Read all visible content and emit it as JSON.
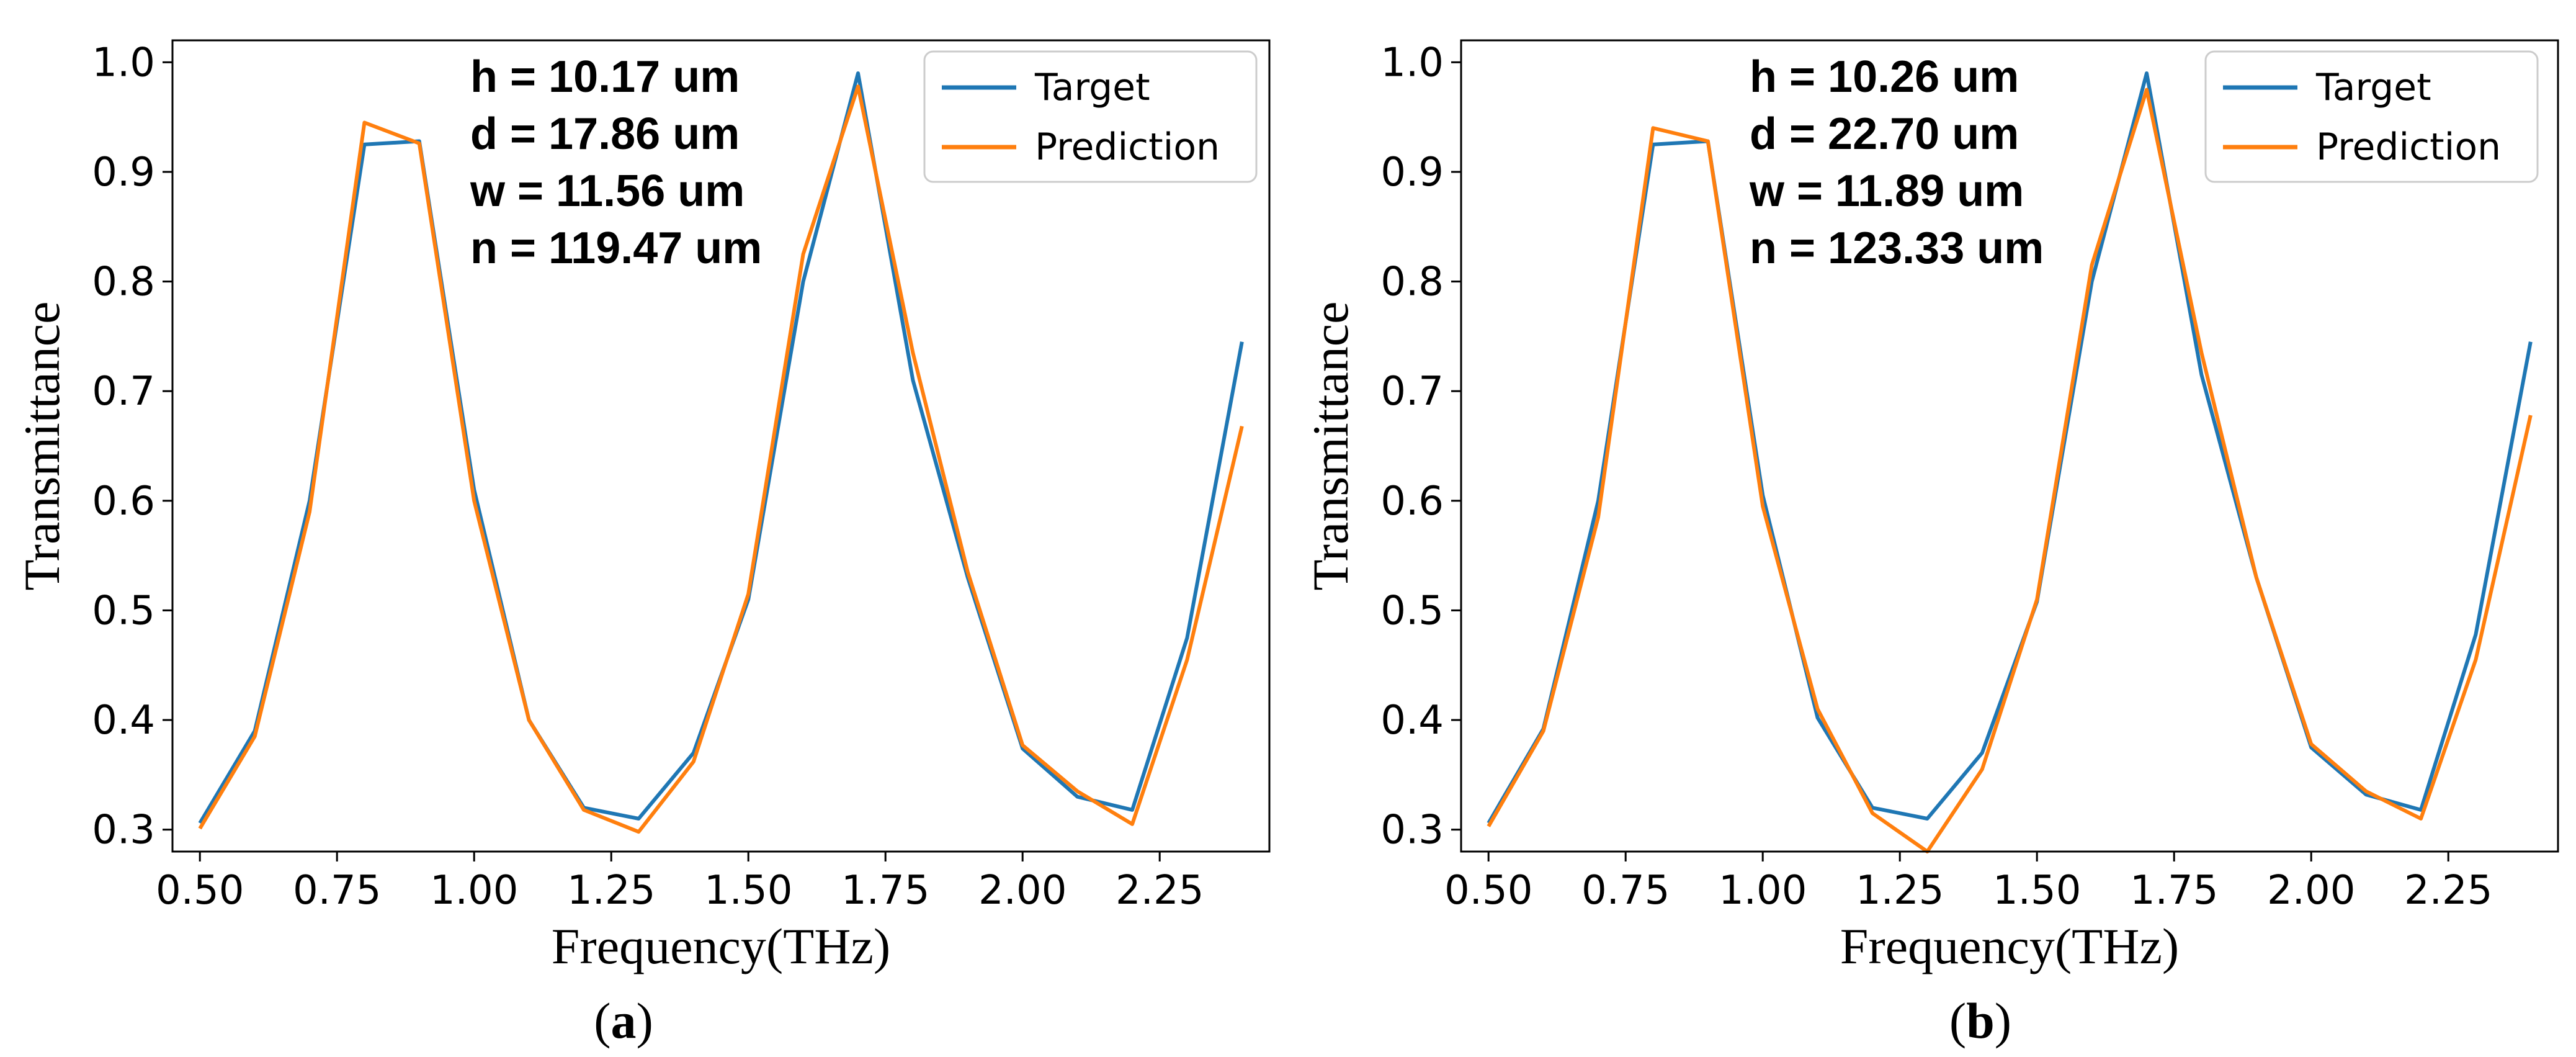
{
  "chart_data": [
    {
      "type": "line",
      "panel_label": "a",
      "xlabel": "Frequency(THz)",
      "ylabel": "Transmittance",
      "xlim": [
        0.45,
        2.45
      ],
      "ylim": [
        0.28,
        1.02
      ],
      "xticks": [
        "0.50",
        "0.75",
        "1.00",
        "1.25",
        "1.50",
        "1.75",
        "2.00",
        "2.25"
      ],
      "yticks": [
        "0.3",
        "0.4",
        "0.5",
        "0.6",
        "0.7",
        "0.8",
        "0.9",
        "1.0"
      ],
      "x": [
        0.5,
        0.6,
        0.7,
        0.8,
        0.9,
        1.0,
        1.1,
        1.2,
        1.3,
        1.4,
        1.5,
        1.6,
        1.7,
        1.8,
        1.9,
        2.0,
        2.1,
        2.2,
        2.3,
        2.4
      ],
      "series": [
        {
          "name": "Target",
          "color": "#1f77b4",
          "values": [
            0.306,
            0.39,
            0.6,
            0.925,
            0.928,
            0.61,
            0.4,
            0.32,
            0.31,
            0.37,
            0.51,
            0.8,
            0.99,
            0.71,
            0.53,
            0.374,
            0.33,
            0.318,
            0.475,
            0.745
          ]
        },
        {
          "name": "Prediction",
          "color": "#ff7f0e",
          "values": [
            0.301,
            0.385,
            0.59,
            0.945,
            0.926,
            0.6,
            0.4,
            0.318,
            0.298,
            0.362,
            0.515,
            0.825,
            0.978,
            0.735,
            0.535,
            0.377,
            0.335,
            0.305,
            0.455,
            0.668
          ]
        }
      ],
      "annotations": [
        "h = 10.17 um",
        "d = 17.86 um",
        "w = 11.56 um",
        "n = 119.47 um"
      ],
      "legend_position": "upper-right"
    },
    {
      "type": "line",
      "panel_label": "b",
      "xlabel": "Frequency(THz)",
      "ylabel": "Transmittance",
      "xlim": [
        0.45,
        2.45
      ],
      "ylim": [
        0.28,
        1.02
      ],
      "xticks": [
        "0.50",
        "0.75",
        "1.00",
        "1.25",
        "1.50",
        "1.75",
        "2.00",
        "2.25"
      ],
      "yticks": [
        "0.3",
        "0.4",
        "0.5",
        "0.6",
        "0.7",
        "0.8",
        "0.9",
        "1.0"
      ],
      "x": [
        0.5,
        0.6,
        0.7,
        0.8,
        0.9,
        1.0,
        1.1,
        1.2,
        1.3,
        1.4,
        1.5,
        1.6,
        1.7,
        1.8,
        1.9,
        2.0,
        2.1,
        2.2,
        2.3,
        2.4
      ],
      "series": [
        {
          "name": "Target",
          "color": "#1f77b4",
          "values": [
            0.306,
            0.392,
            0.6,
            0.925,
            0.928,
            0.605,
            0.402,
            0.32,
            0.31,
            0.37,
            0.508,
            0.8,
            0.99,
            0.715,
            0.53,
            0.375,
            0.332,
            0.318,
            0.478,
            0.745
          ]
        },
        {
          "name": "Prediction",
          "color": "#ff7f0e",
          "values": [
            0.303,
            0.39,
            0.585,
            0.94,
            0.928,
            0.595,
            0.41,
            0.315,
            0.28,
            0.355,
            0.51,
            0.815,
            0.975,
            0.735,
            0.53,
            0.378,
            0.335,
            0.31,
            0.455,
            0.678
          ]
        }
      ],
      "annotations": [
        "h = 10.26 um",
        "d = 22.70 um",
        "w = 11.89 um",
        "n = 123.33 um"
      ],
      "legend_position": "upper-right"
    }
  ]
}
